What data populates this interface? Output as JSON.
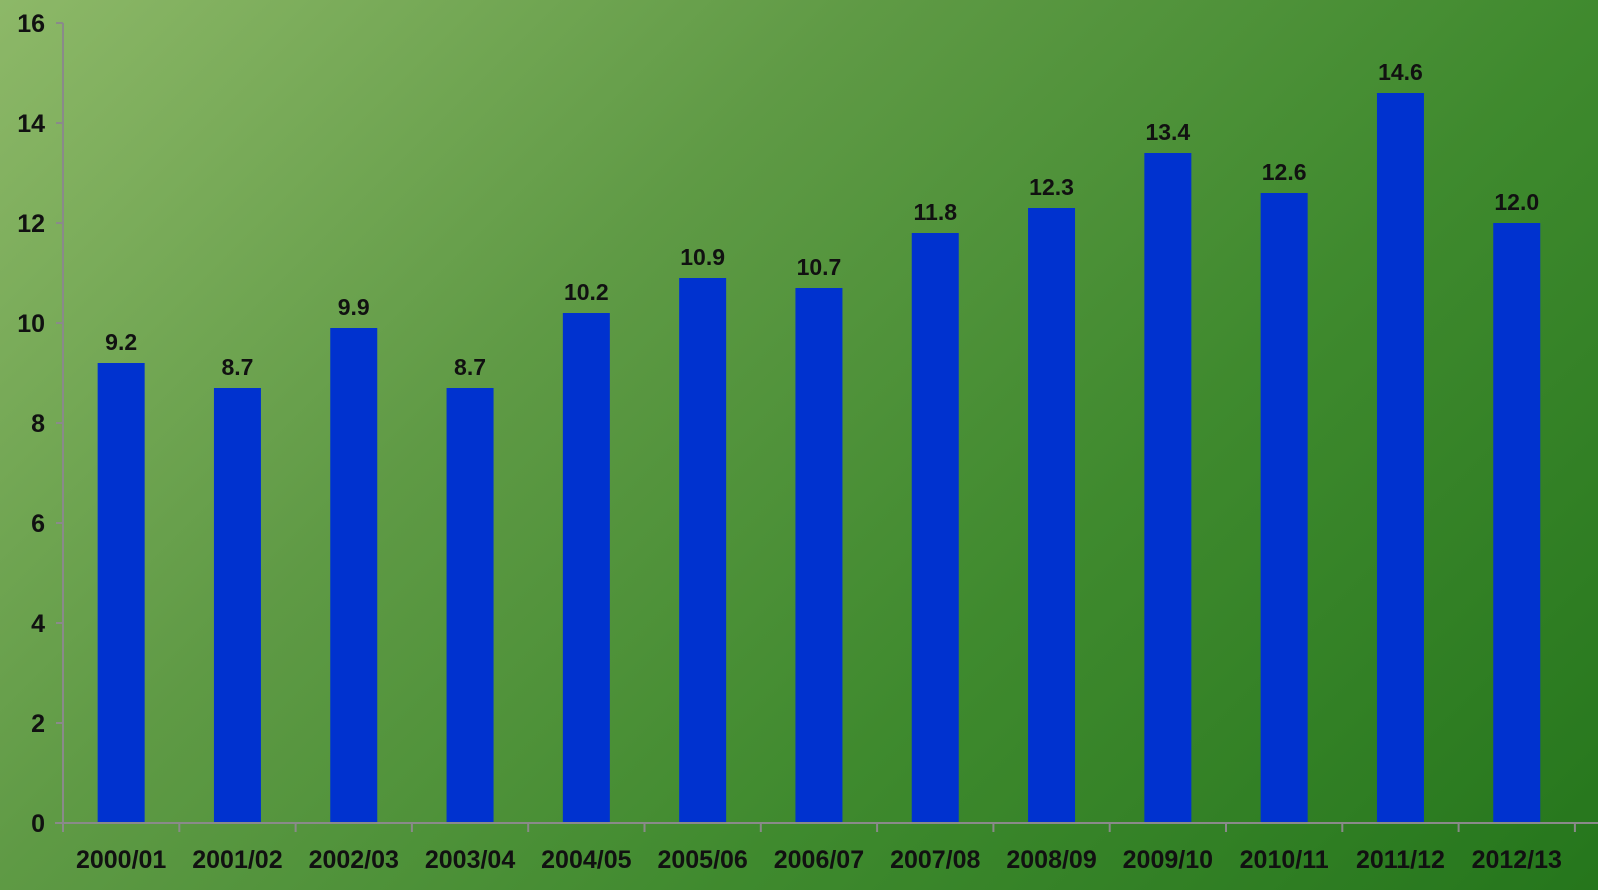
{
  "chart_data": {
    "type": "bar",
    "title": "",
    "xlabel": "",
    "ylabel": "",
    "categories": [
      "2000/01",
      "2001/02",
      "2002/03",
      "2003/04",
      "2004/05",
      "2005/06",
      "2006/07",
      "2007/08",
      "2008/09",
      "2009/10",
      "2010/11",
      "2011/12",
      "2012/13"
    ],
    "values": [
      9.2,
      8.7,
      9.9,
      8.7,
      10.2,
      10.9,
      10.7,
      11.8,
      12.3,
      13.4,
      12.6,
      14.6,
      12.0
    ],
    "value_labels": [
      "9.2",
      "8.7",
      "9.9",
      "8.7",
      "10.2",
      "10.9",
      "10.7",
      "11.8",
      "12.3",
      "13.4",
      "12.6",
      "14.6",
      "12.0"
    ],
    "ylim": [
      0,
      16
    ],
    "yticks": [
      "0",
      "2",
      "4",
      "6",
      "8",
      "10",
      "12",
      "14",
      "16"
    ],
    "grid": false,
    "legend": "none",
    "colors": {
      "bar": "#0032cf",
      "axis": "#8a8a8a",
      "text": "#111111"
    }
  }
}
